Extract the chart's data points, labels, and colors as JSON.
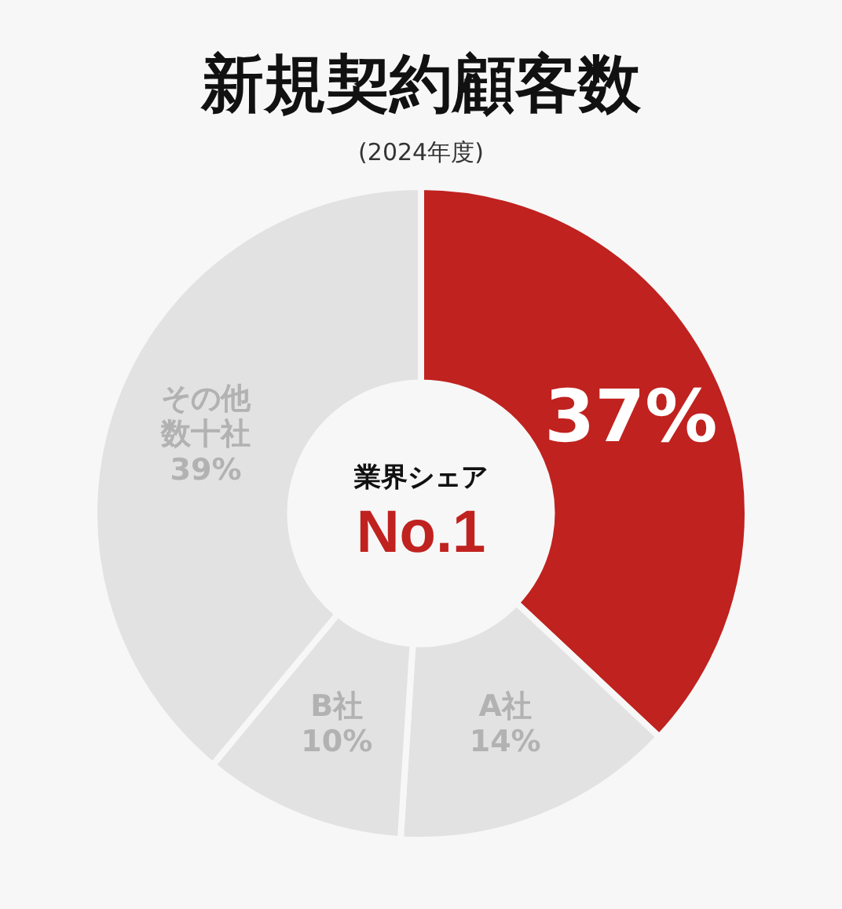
{
  "chart_data": {
    "type": "donut",
    "title": "新規契約顧客数",
    "subtitle": "(2024年度)",
    "categories": [
      null,
      "A社",
      "B社",
      "その他数十社"
    ],
    "values": [
      37,
      14,
      10,
      39
    ],
    "colors": [
      "#c0221f",
      "#e2e2e2",
      "#e2e2e2",
      "#e2e2e2"
    ],
    "value_labels": [
      "37%",
      "14%",
      "10%",
      "39%"
    ],
    "annotations": [
      "業界シェア",
      "No.1"
    ],
    "legend": false
  }
}
